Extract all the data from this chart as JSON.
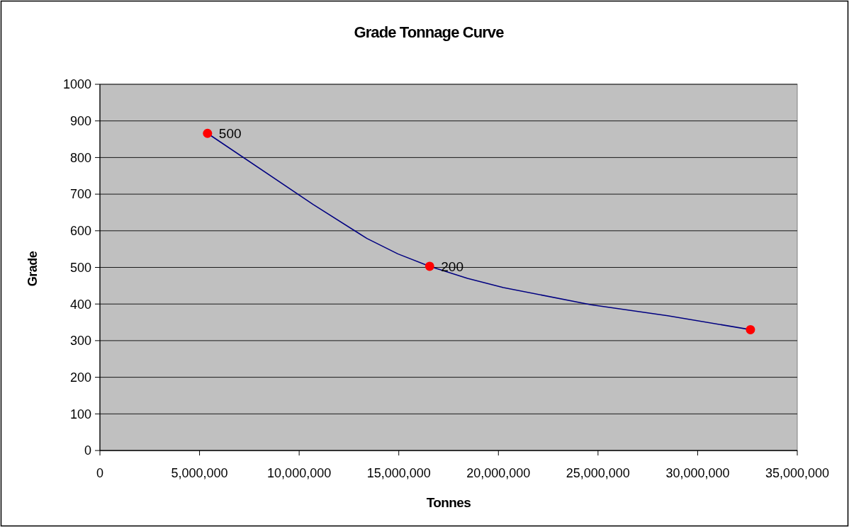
{
  "chart_data": {
    "type": "line",
    "title": "Grade Tonnage Curve",
    "xlabel": "Tonnes",
    "ylabel": "Grade",
    "xlim": [
      0,
      35000000
    ],
    "xticks": [
      0,
      {
        "value": 5000000,
        "label": "5,000,000"
      },
      {
        "value": 10000000,
        "label": "10,000,000"
      },
      {
        "value": 15000000,
        "label": "15,000,000"
      },
      {
        "value": 20000000,
        "label": "20,000,000"
      },
      {
        "value": 25000000,
        "label": "25,000,000"
      },
      {
        "value": 30000000,
        "label": "30,000,000"
      },
      {
        "value": 35000000,
        "label": "35,000,000"
      }
    ],
    "ylim": [
      0,
      1000
    ],
    "yticks": [
      0,
      100,
      200,
      300,
      400,
      500,
      600,
      700,
      800,
      900,
      1000
    ],
    "grid": "y",
    "series": [
      {
        "color": "#000080",
        "x": [
          5400000,
          10700000,
          13400000,
          14950000,
          16550000,
          18450000,
          20250000,
          24650000,
          28500000,
          32650000
        ],
        "values": [
          866,
          672,
          579,
          537,
          503,
          470,
          445,
          398,
          368,
          330
        ]
      },
      {
        "type": "scatter",
        "color": "#ff0000",
        "marker": "circle",
        "x": [
          5400000,
          16550000,
          32650000
        ],
        "values": [
          866,
          503,
          330
        ]
      }
    ],
    "annotations": [
      {
        "text": "500",
        "x": 5400000,
        "y": 866
      },
      {
        "text": "200",
        "x": 16550000,
        "y": 503
      }
    ]
  }
}
